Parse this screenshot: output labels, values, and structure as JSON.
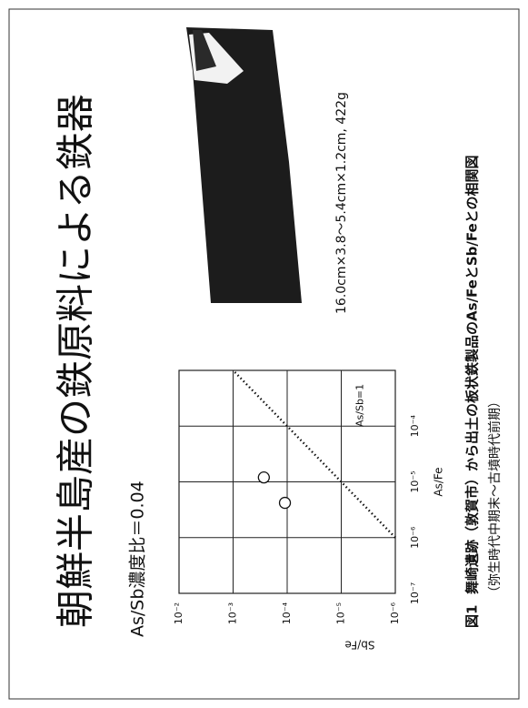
{
  "title": "朝鮮半島産の鉄原料による鉄器",
  "photo_caption": "16.0cm×3.8～5.4cm×1.2cm, 422g",
  "figure_caption": {
    "label": "図1",
    "text": "舞崎遺跡（敦賀市）から出土の板状鉄製品のAs/FeとSb/Feとの相関図",
    "sub": "（弥生時代中期末～古墳時代前期）"
  },
  "chart_data": {
    "type": "scatter",
    "title": "As/Sb濃度比＝0.04",
    "x_label": "As/Fe",
    "y_label": "Sb/Fe",
    "x_log": true,
    "y_log": true,
    "grid": true,
    "xlim": [
      1e-07,
      0.001
    ],
    "ylim": [
      1e-06,
      0.01
    ],
    "xticks": [
      {
        "value": 1e-07,
        "label": "10⁻⁷"
      },
      {
        "value": 1e-06,
        "label": "10⁻⁶"
      },
      {
        "value": 1e-05,
        "label": "10⁻⁵"
      },
      {
        "value": 0.0001,
        "label": "10⁻⁴"
      }
    ],
    "yticks": [
      {
        "value": 0.01,
        "label": "10⁻²"
      },
      {
        "value": 0.001,
        "label": "10⁻³"
      },
      {
        "value": 0.0001,
        "label": "10⁻⁴"
      },
      {
        "value": 1e-05,
        "label": "10⁻⁵"
      },
      {
        "value": 1e-06,
        "label": "10⁻⁶"
      }
    ],
    "points": {
      "color": "#ffffff",
      "x": [
        1.2e-05,
        4.2e-06
      ],
      "y": [
        0.00027,
        0.00011
      ]
    },
    "reference": {
      "name": "As/Sb=1",
      "x": [
        1e-06,
        0.001
      ],
      "y": [
        1e-06,
        0.001
      ]
    }
  }
}
